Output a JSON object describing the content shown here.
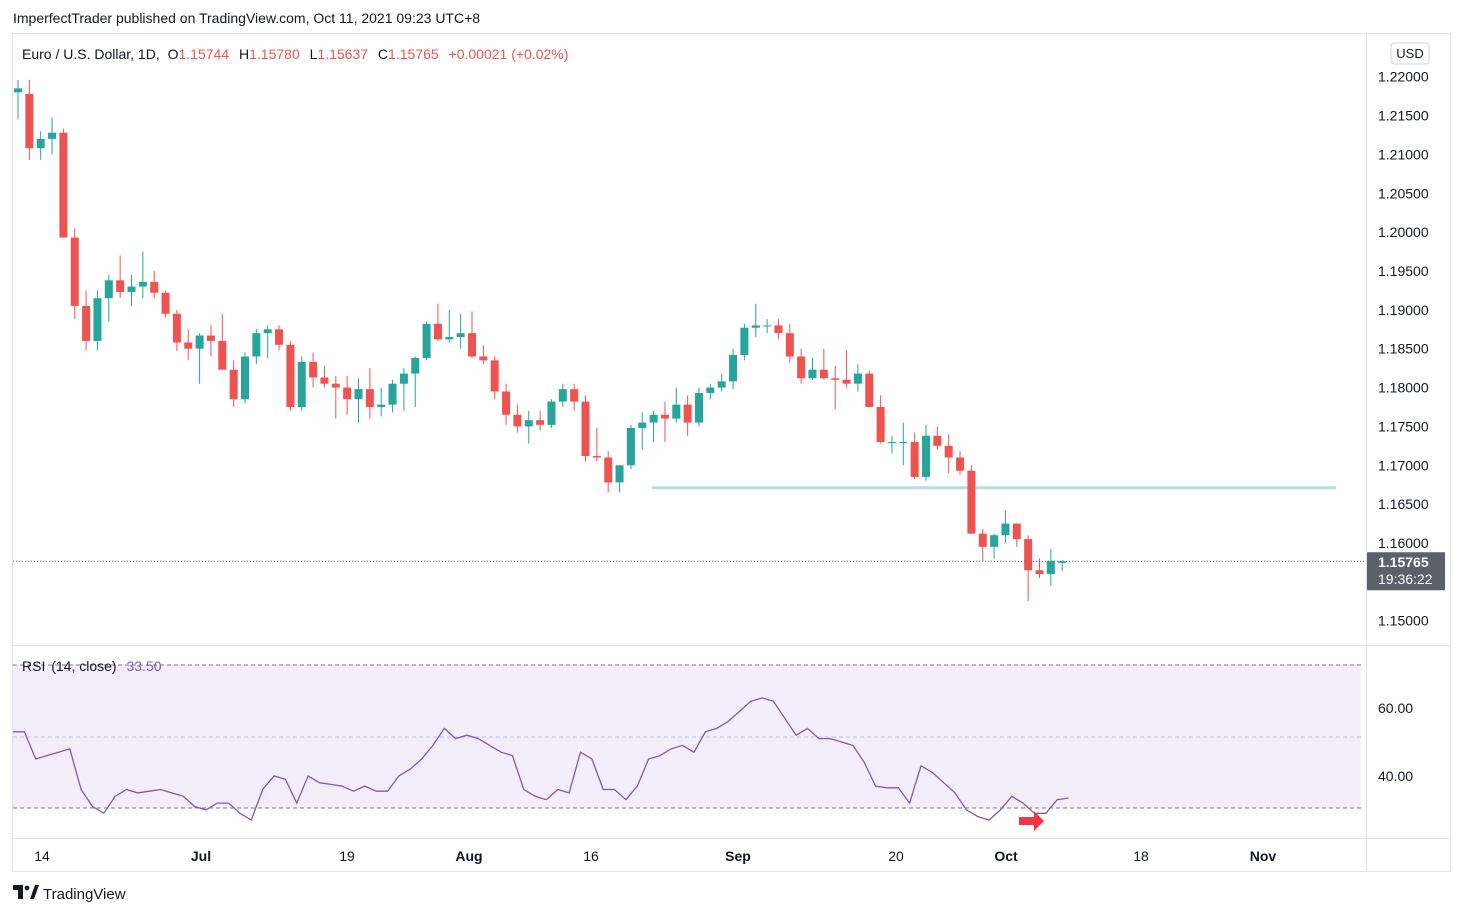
{
  "header": {
    "publisher_line": "ImperfectTrader published on TradingView.com, Oct 11, 2021 09:23 UTC+8"
  },
  "footer": {
    "logo_text": "TradingView",
    "logo_icon": "tradingview-logo-icon"
  },
  "legend": {
    "symbol": "Euro / U.S. Dollar, 1D,",
    "o_label": "O",
    "o_value": "1.15744",
    "h_label": "H",
    "h_value": "1.15780",
    "l_label": "L",
    "l_value": "1.15637",
    "c_label": "C",
    "c_value": "1.15765",
    "change": "+0.00021 (+0.02%)"
  },
  "currency_badge": "USD",
  "last_price": {
    "value": "1.15765",
    "countdown": "19:36:22"
  },
  "rsi_legend": {
    "name": "RSI",
    "params": "(14, close)",
    "value": "33.50"
  },
  "colors": {
    "up": "#26a69a",
    "down": "#ef5350",
    "rsi_line": "#7e57c2",
    "rsi_band": "#f3eef9",
    "support_line": "#b2dfdb",
    "arrow": "#f23645",
    "last_badge": "#5d606b"
  },
  "chart_data": [
    {
      "type": "candlestick",
      "x_tick_labels": [
        "14",
        "Jul",
        "19",
        "Aug",
        "16",
        "Sep",
        "20",
        "Oct",
        "18",
        "Nov"
      ],
      "y_tick_labels": [
        "1.22000",
        "1.21500",
        "1.21000",
        "1.20500",
        "1.20000",
        "1.19500",
        "1.19000",
        "1.18500",
        "1.18000",
        "1.17500",
        "1.17000",
        "1.16500",
        "1.16000",
        "1.15000"
      ],
      "ylim": [
        1.147,
        1.2255
      ],
      "support_level": 1.1671,
      "last_close": 1.15765,
      "candles": [
        {
          "o": 1.218,
          "h": 1.2196,
          "l": 1.2145,
          "c": 1.2185
        },
        {
          "o": 1.2178,
          "h": 1.2196,
          "l": 1.2093,
          "c": 1.2108
        },
        {
          "o": 1.2108,
          "h": 1.213,
          "l": 1.2093,
          "c": 1.212
        },
        {
          "o": 1.212,
          "h": 1.2148,
          "l": 1.21,
          "c": 1.2128
        },
        {
          "o": 1.2128,
          "h": 1.2133,
          "l": 1.1993,
          "c": 1.1993
        },
        {
          "o": 1.1993,
          "h": 1.2005,
          "l": 1.1888,
          "c": 1.1905
        },
        {
          "o": 1.1905,
          "h": 1.1925,
          "l": 1.1848,
          "c": 1.186
        },
        {
          "o": 1.186,
          "h": 1.1925,
          "l": 1.1848,
          "c": 1.1915
        },
        {
          "o": 1.1915,
          "h": 1.1945,
          "l": 1.1885,
          "c": 1.1938
        },
        {
          "o": 1.1938,
          "h": 1.197,
          "l": 1.1915,
          "c": 1.1923
        },
        {
          "o": 1.1923,
          "h": 1.1945,
          "l": 1.1905,
          "c": 1.193
        },
        {
          "o": 1.193,
          "h": 1.1975,
          "l": 1.1915,
          "c": 1.1936
        },
        {
          "o": 1.1936,
          "h": 1.195,
          "l": 1.1915,
          "c": 1.1922
        },
        {
          "o": 1.1922,
          "h": 1.1925,
          "l": 1.189,
          "c": 1.1895
        },
        {
          "o": 1.1895,
          "h": 1.19,
          "l": 1.1847,
          "c": 1.1858
        },
        {
          "o": 1.1858,
          "h": 1.1875,
          "l": 1.1835,
          "c": 1.185
        },
        {
          "o": 1.185,
          "h": 1.187,
          "l": 1.1805,
          "c": 1.1867
        },
        {
          "o": 1.1867,
          "h": 1.188,
          "l": 1.184,
          "c": 1.186
        },
        {
          "o": 1.186,
          "h": 1.1895,
          "l": 1.1828,
          "c": 1.1823
        },
        {
          "o": 1.1823,
          "h": 1.1835,
          "l": 1.1775,
          "c": 1.1785
        },
        {
          "o": 1.1785,
          "h": 1.1845,
          "l": 1.178,
          "c": 1.184
        },
        {
          "o": 1.184,
          "h": 1.1875,
          "l": 1.183,
          "c": 1.187
        },
        {
          "o": 1.187,
          "h": 1.188,
          "l": 1.1838,
          "c": 1.1875
        },
        {
          "o": 1.1875,
          "h": 1.188,
          "l": 1.1848,
          "c": 1.1855
        },
        {
          "o": 1.1855,
          "h": 1.186,
          "l": 1.177,
          "c": 1.1775
        },
        {
          "o": 1.1775,
          "h": 1.184,
          "l": 1.177,
          "c": 1.1833
        },
        {
          "o": 1.1833,
          "h": 1.1845,
          "l": 1.18,
          "c": 1.1813
        },
        {
          "o": 1.1813,
          "h": 1.1828,
          "l": 1.18,
          "c": 1.1805
        },
        {
          "o": 1.1805,
          "h": 1.1815,
          "l": 1.176,
          "c": 1.18
        },
        {
          "o": 1.18,
          "h": 1.1815,
          "l": 1.1765,
          "c": 1.1785
        },
        {
          "o": 1.1785,
          "h": 1.1812,
          "l": 1.1755,
          "c": 1.1798
        },
        {
          "o": 1.1798,
          "h": 1.1825,
          "l": 1.176,
          "c": 1.1775
        },
        {
          "o": 1.1775,
          "h": 1.18,
          "l": 1.1763,
          "c": 1.1778
        },
        {
          "o": 1.1778,
          "h": 1.181,
          "l": 1.1768,
          "c": 1.1805
        },
        {
          "o": 1.1805,
          "h": 1.1825,
          "l": 1.177,
          "c": 1.1818
        },
        {
          "o": 1.1818,
          "h": 1.184,
          "l": 1.1775,
          "c": 1.1838
        },
        {
          "o": 1.1838,
          "h": 1.1885,
          "l": 1.1835,
          "c": 1.1882
        },
        {
          "o": 1.1882,
          "h": 1.1908,
          "l": 1.186,
          "c": 1.1862
        },
        {
          "o": 1.1862,
          "h": 1.19,
          "l": 1.1858,
          "c": 1.1865
        },
        {
          "o": 1.1865,
          "h": 1.1895,
          "l": 1.185,
          "c": 1.187
        },
        {
          "o": 1.187,
          "h": 1.1898,
          "l": 1.1838,
          "c": 1.184
        },
        {
          "o": 1.184,
          "h": 1.1855,
          "l": 1.183,
          "c": 1.1835
        },
        {
          "o": 1.1835,
          "h": 1.184,
          "l": 1.1785,
          "c": 1.1795
        },
        {
          "o": 1.1795,
          "h": 1.1805,
          "l": 1.1752,
          "c": 1.1765
        },
        {
          "o": 1.1765,
          "h": 1.1778,
          "l": 1.1742,
          "c": 1.175
        },
        {
          "o": 1.175,
          "h": 1.177,
          "l": 1.1728,
          "c": 1.1758
        },
        {
          "o": 1.1758,
          "h": 1.177,
          "l": 1.1745,
          "c": 1.1752
        },
        {
          "o": 1.1752,
          "h": 1.1785,
          "l": 1.1748,
          "c": 1.1782
        },
        {
          "o": 1.1782,
          "h": 1.1805,
          "l": 1.1775,
          "c": 1.1798
        },
        {
          "o": 1.1798,
          "h": 1.1805,
          "l": 1.177,
          "c": 1.1782
        },
        {
          "o": 1.1782,
          "h": 1.179,
          "l": 1.1705,
          "c": 1.1712
        },
        {
          "o": 1.1712,
          "h": 1.1748,
          "l": 1.1705,
          "c": 1.171
        },
        {
          "o": 1.171,
          "h": 1.1718,
          "l": 1.1665,
          "c": 1.1678
        },
        {
          "o": 1.1678,
          "h": 1.17,
          "l": 1.1665,
          "c": 1.17
        },
        {
          "o": 1.17,
          "h": 1.1752,
          "l": 1.1695,
          "c": 1.1748
        },
        {
          "o": 1.1748,
          "h": 1.1768,
          "l": 1.172,
          "c": 1.1755
        },
        {
          "o": 1.1755,
          "h": 1.177,
          "l": 1.173,
          "c": 1.1765
        },
        {
          "o": 1.1765,
          "h": 1.1782,
          "l": 1.173,
          "c": 1.176
        },
        {
          "o": 1.176,
          "h": 1.18,
          "l": 1.1755,
          "c": 1.1778
        },
        {
          "o": 1.1778,
          "h": 1.179,
          "l": 1.1738,
          "c": 1.1755
        },
        {
          "o": 1.1755,
          "h": 1.18,
          "l": 1.175,
          "c": 1.1793
        },
        {
          "o": 1.1793,
          "h": 1.1805,
          "l": 1.1785,
          "c": 1.18
        },
        {
          "o": 1.18,
          "h": 1.1818,
          "l": 1.1795,
          "c": 1.1808
        },
        {
          "o": 1.1808,
          "h": 1.185,
          "l": 1.1798,
          "c": 1.1842
        },
        {
          "o": 1.1842,
          "h": 1.1882,
          "l": 1.1835,
          "c": 1.1877
        },
        {
          "o": 1.1877,
          "h": 1.1908,
          "l": 1.1865,
          "c": 1.188
        },
        {
          "o": 1.188,
          "h": 1.1888,
          "l": 1.187,
          "c": 1.188
        },
        {
          "o": 1.188,
          "h": 1.1888,
          "l": 1.1862,
          "c": 1.187
        },
        {
          "o": 1.187,
          "h": 1.1882,
          "l": 1.1832,
          "c": 1.184
        },
        {
          "o": 1.184,
          "h": 1.185,
          "l": 1.1805,
          "c": 1.1812
        },
        {
          "o": 1.1812,
          "h": 1.1838,
          "l": 1.181,
          "c": 1.1823
        },
        {
          "o": 1.1823,
          "h": 1.185,
          "l": 1.181,
          "c": 1.1812
        },
        {
          "o": 1.1812,
          "h": 1.1828,
          "l": 1.1772,
          "c": 1.181
        },
        {
          "o": 1.181,
          "h": 1.1848,
          "l": 1.18,
          "c": 1.1805
        },
        {
          "o": 1.1805,
          "h": 1.183,
          "l": 1.1795,
          "c": 1.1818
        },
        {
          "o": 1.1818,
          "h": 1.1822,
          "l": 1.1775,
          "c": 1.1775
        },
        {
          "o": 1.1775,
          "h": 1.179,
          "l": 1.1728,
          "c": 1.173
        },
        {
          "o": 1.173,
          "h": 1.1738,
          "l": 1.1715,
          "c": 1.173
        },
        {
          "o": 1.173,
          "h": 1.1755,
          "l": 1.17,
          "c": 1.173
        },
        {
          "o": 1.173,
          "h": 1.1742,
          "l": 1.1682,
          "c": 1.1685
        },
        {
          "o": 1.1685,
          "h": 1.1752,
          "l": 1.168,
          "c": 1.1738
        },
        {
          "o": 1.1738,
          "h": 1.175,
          "l": 1.172,
          "c": 1.1725
        },
        {
          "o": 1.1725,
          "h": 1.174,
          "l": 1.169,
          "c": 1.171
        },
        {
          "o": 1.171,
          "h": 1.1718,
          "l": 1.1688,
          "c": 1.1693
        },
        {
          "o": 1.1693,
          "h": 1.17,
          "l": 1.1612,
          "c": 1.1612
        },
        {
          "o": 1.1612,
          "h": 1.1618,
          "l": 1.1576,
          "c": 1.1595
        },
        {
          "o": 1.1595,
          "h": 1.1612,
          "l": 1.158,
          "c": 1.161
        },
        {
          "o": 1.161,
          "h": 1.1642,
          "l": 1.16,
          "c": 1.1625
        },
        {
          "o": 1.1625,
          "h": 1.1625,
          "l": 1.1595,
          "c": 1.1605
        },
        {
          "o": 1.1605,
          "h": 1.161,
          "l": 1.1525,
          "c": 1.1565
        },
        {
          "o": 1.1565,
          "h": 1.158,
          "l": 1.1555,
          "c": 1.156
        },
        {
          "o": 1.156,
          "h": 1.1592,
          "l": 1.1545,
          "c": 1.1577
        },
        {
          "o": 1.15744,
          "h": 1.1578,
          "l": 1.15637,
          "c": 1.15765
        }
      ]
    },
    {
      "type": "line",
      "title": "RSI (14, close)",
      "y_tick_labels": [
        "60.00",
        "40.00"
      ],
      "levels": [
        70,
        50,
        30
      ],
      "ylim": [
        22,
        78
      ],
      "values": [
        53,
        53,
        45,
        46,
        47,
        48,
        36,
        31,
        29,
        34,
        36,
        35,
        35.5,
        36,
        35,
        34,
        31,
        30,
        32,
        32,
        29,
        27,
        36,
        40,
        39,
        32,
        40,
        38,
        37.5,
        37,
        35.5,
        37,
        35.5,
        35.5,
        40,
        42,
        45,
        49,
        54,
        51,
        52,
        51,
        49,
        47,
        46,
        36,
        34,
        33,
        36,
        35,
        47,
        45,
        36,
        36,
        33,
        37,
        45,
        46,
        48,
        49,
        47,
        53,
        54,
        56,
        59,
        62,
        63,
        62,
        57,
        52,
        54,
        51,
        51,
        50,
        49,
        44,
        37,
        36.5,
        36.5,
        32,
        43,
        41,
        38,
        35,
        30,
        28,
        27,
        30,
        34,
        32,
        29,
        29,
        33,
        33.5
      ]
    }
  ]
}
